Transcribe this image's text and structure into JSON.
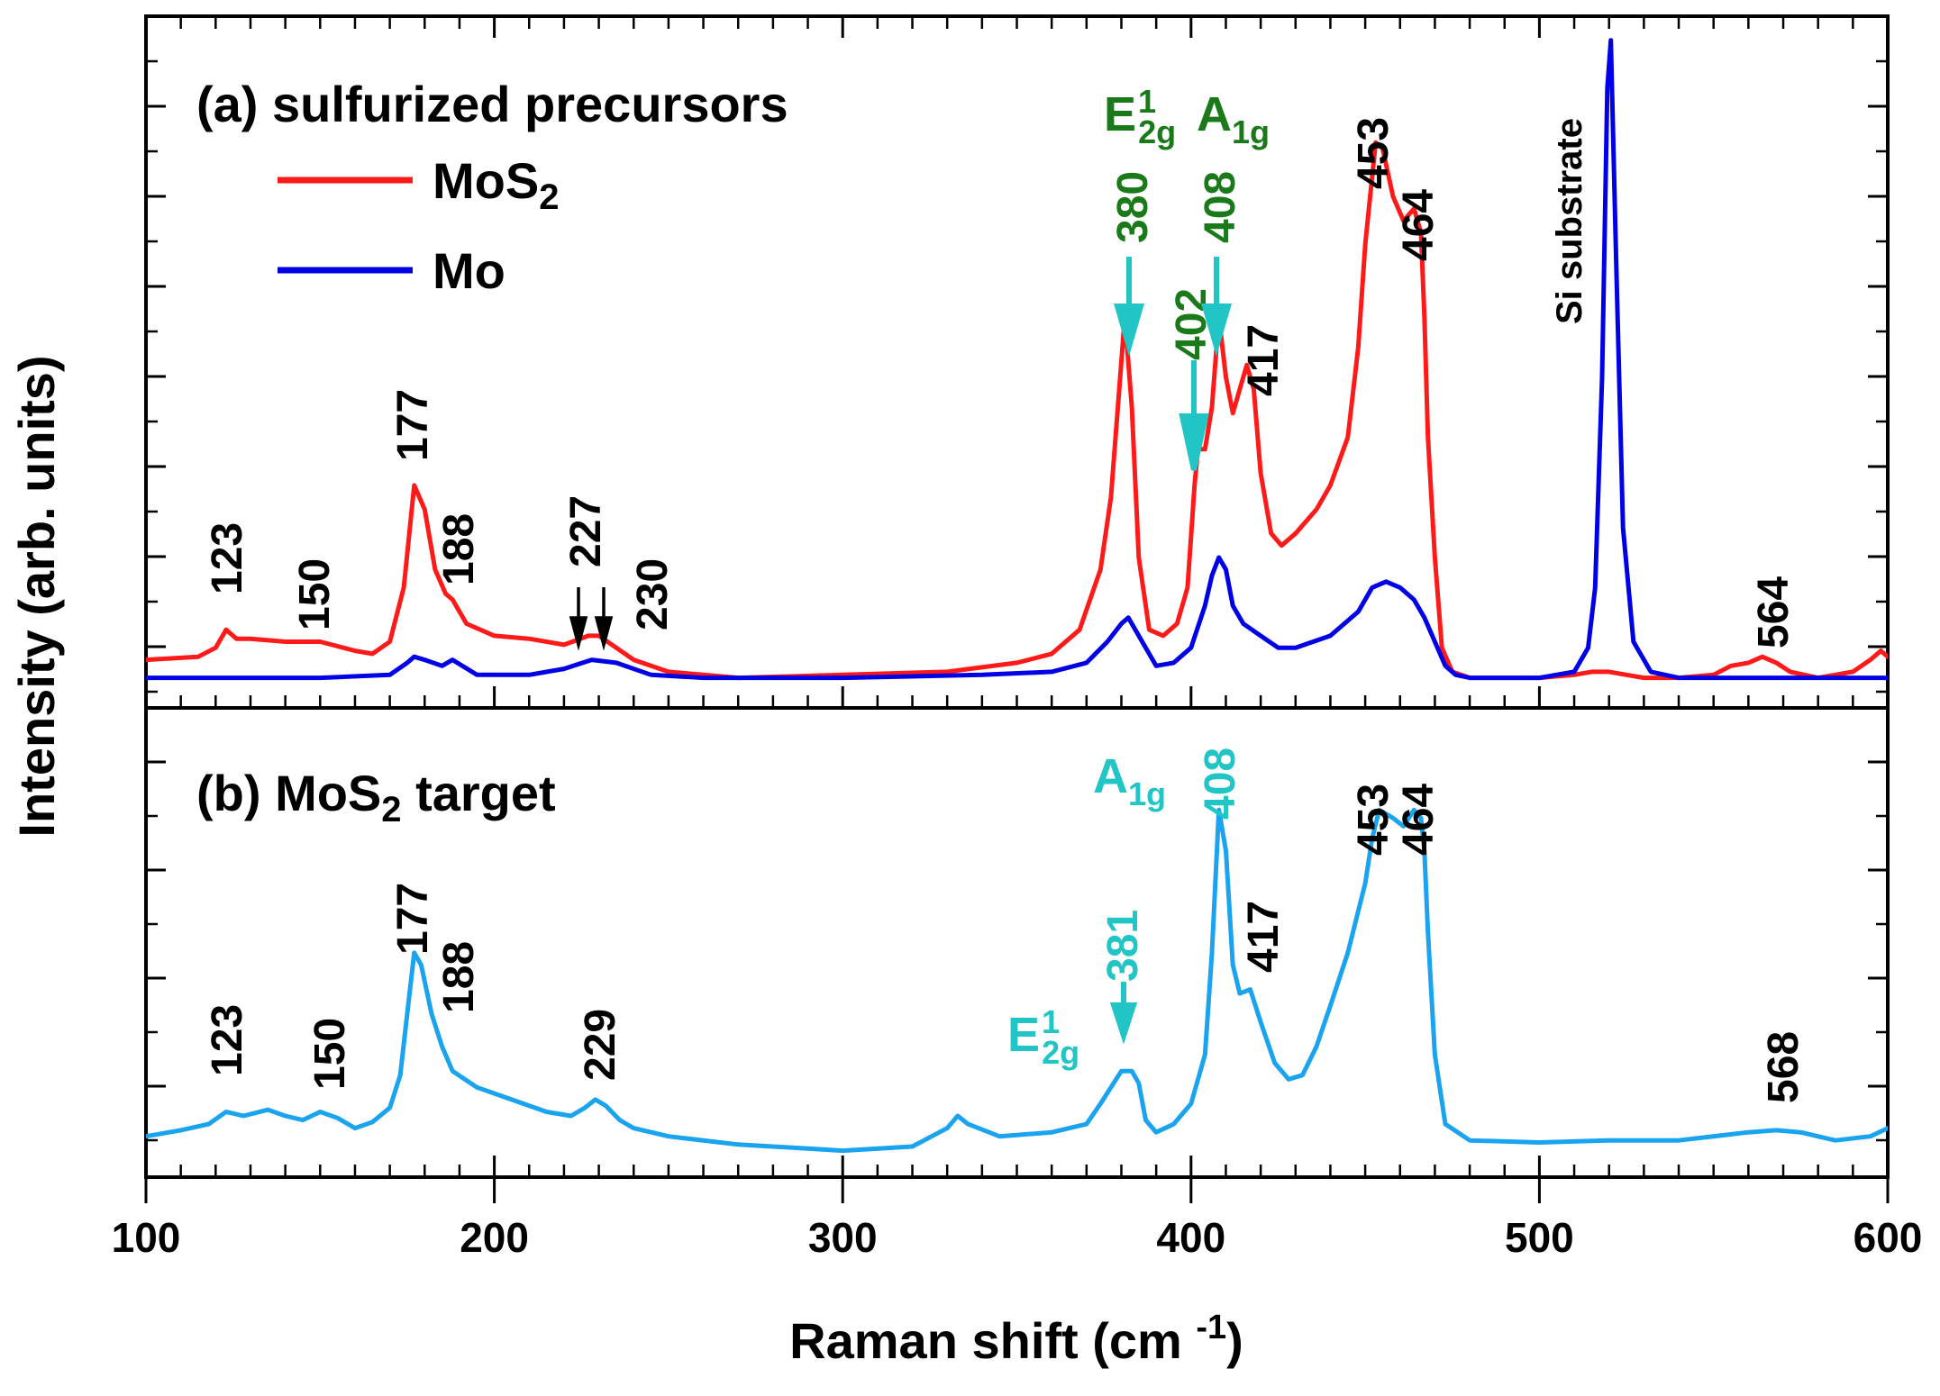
{
  "chart_data": [
    {
      "panel": "a",
      "type": "line",
      "title": "(a) sulfurized precursors",
      "xlabel": "Raman shift (cm ",
      "xlabel_sup": "-1",
      "xlabel_close": ")",
      "ylabel": "Intensity (arb. units)",
      "xlim": [
        100,
        600
      ],
      "ylim": [
        -0.05,
        1.1
      ],
      "legend_position": "top-left",
      "series": [
        {
          "name": "MoS",
          "name_sub": "2",
          "color": "#ff1a1a",
          "x": [
            100,
            115,
            120,
            123,
            126,
            130,
            140,
            150,
            160,
            165,
            170,
            174,
            177,
            180,
            183,
            186,
            188,
            192,
            200,
            210,
            220,
            227,
            230,
            235,
            240,
            250,
            270,
            300,
            330,
            350,
            360,
            368,
            374,
            377,
            379,
            381,
            383,
            385,
            388,
            392,
            396,
            399,
            401,
            402,
            404,
            406,
            408,
            410,
            412,
            414,
            416,
            418,
            420,
            423,
            426,
            430,
            436,
            440,
            445,
            448,
            450,
            453,
            455,
            458,
            461,
            464,
            466,
            467,
            468,
            470,
            472,
            475,
            480,
            490,
            500,
            510,
            515,
            520,
            525,
            530,
            540,
            550,
            555,
            560,
            564,
            568,
            572,
            580,
            590,
            595,
            598,
            600
          ],
          "y": [
            0.03,
            0.035,
            0.05,
            0.08,
            0.065,
            0.065,
            0.06,
            0.06,
            0.045,
            0.04,
            0.06,
            0.15,
            0.32,
            0.28,
            0.18,
            0.14,
            0.13,
            0.09,
            0.07,
            0.065,
            0.055,
            0.07,
            0.07,
            0.05,
            0.03,
            0.01,
            0.0,
            0.005,
            0.01,
            0.025,
            0.04,
            0.08,
            0.18,
            0.3,
            0.45,
            0.6,
            0.45,
            0.2,
            0.08,
            0.07,
            0.09,
            0.15,
            0.32,
            0.38,
            0.38,
            0.45,
            0.6,
            0.5,
            0.44,
            0.48,
            0.52,
            0.48,
            0.34,
            0.24,
            0.22,
            0.24,
            0.28,
            0.32,
            0.4,
            0.55,
            0.72,
            0.89,
            0.88,
            0.8,
            0.76,
            0.78,
            0.74,
            0.6,
            0.4,
            0.2,
            0.05,
            0.01,
            0.0,
            0.0,
            0.0,
            0.005,
            0.01,
            0.01,
            0.005,
            0.0,
            0.0,
            0.005,
            0.02,
            0.025,
            0.035,
            0.025,
            0.01,
            0.0,
            0.01,
            0.03,
            0.045,
            0.035
          ]
        },
        {
          "name": "Mo",
          "color": "#0000e6",
          "x": [
            100,
            150,
            170,
            175,
            177,
            180,
            185,
            188,
            195,
            210,
            220,
            228,
            235,
            245,
            260,
            300,
            340,
            360,
            370,
            376,
            380,
            382,
            385,
            390,
            395,
            400,
            404,
            406,
            408,
            410,
            412,
            415,
            420,
            425,
            430,
            440,
            448,
            452,
            456,
            460,
            464,
            467,
            470,
            473,
            476,
            480,
            500,
            510,
            514,
            516,
            518,
            519.5,
            520.5,
            522,
            524,
            527,
            532,
            540,
            600
          ],
          "y": [
            0.0,
            0.0,
            0.005,
            0.025,
            0.035,
            0.03,
            0.02,
            0.03,
            0.005,
            0.005,
            0.015,
            0.03,
            0.025,
            0.005,
            0.0,
            0.0,
            0.005,
            0.01,
            0.025,
            0.06,
            0.09,
            0.1,
            0.07,
            0.02,
            0.025,
            0.05,
            0.12,
            0.17,
            0.2,
            0.18,
            0.12,
            0.09,
            0.07,
            0.05,
            0.05,
            0.07,
            0.11,
            0.15,
            0.16,
            0.15,
            0.13,
            0.1,
            0.06,
            0.02,
            0.005,
            0.0,
            0.0,
            0.01,
            0.05,
            0.15,
            0.5,
            0.98,
            1.06,
            0.7,
            0.25,
            0.06,
            0.01,
            0.0,
            0.0
          ]
        }
      ],
      "annotations": [
        {
          "x": 123,
          "label": "123",
          "color": "#000000"
        },
        {
          "x": 150,
          "label": "150",
          "color": "#000000"
        },
        {
          "x": 177,
          "label": "177",
          "color": "#000000"
        },
        {
          "x": 188,
          "label": "188",
          "color": "#000000"
        },
        {
          "x": 227,
          "label": "227",
          "color": "#000000"
        },
        {
          "x": 230,
          "label": "230",
          "color": "#000000"
        },
        {
          "x": 380,
          "label": "380",
          "color": "#1a7a1a"
        },
        {
          "x": 402,
          "label": "402",
          "color": "#1a7a1a"
        },
        {
          "x": 408,
          "label": "408",
          "color": "#1a7a1a"
        },
        {
          "x": 417,
          "label": "417",
          "color": "#000000"
        },
        {
          "x": 453,
          "label": "453",
          "color": "#000000"
        },
        {
          "x": 464,
          "label": "464",
          "color": "#000000"
        },
        {
          "x": 520,
          "label": "Si substrate",
          "color": "#000000"
        },
        {
          "x": 564,
          "label": "564",
          "color": "#000000"
        }
      ],
      "mode_labels": [
        {
          "main": "E",
          "sub": "2g",
          "sup": "1",
          "color": "#1a7a1a"
        },
        {
          "main": "A",
          "sub": "1g",
          "sup": "",
          "color": "#1a7a1a"
        }
      ]
    },
    {
      "panel": "b",
      "type": "line",
      "title": "(b) MoS",
      "title_sub": "2",
      "title_rest": " target",
      "xlim": [
        100,
        600
      ],
      "ylim": [
        -0.1,
        1.05
      ],
      "series": [
        {
          "name": "MoS2 target",
          "color": "#1aa3ee",
          "x": [
            100,
            110,
            118,
            123,
            128,
            135,
            140,
            145,
            150,
            155,
            160,
            165,
            170,
            173,
            175,
            177,
            179,
            182,
            185,
            188,
            195,
            205,
            215,
            222,
            226,
            229,
            232,
            236,
            240,
            250,
            270,
            290,
            300,
            320,
            330,
            333,
            336,
            345,
            360,
            370,
            374,
            377,
            380,
            383,
            385,
            387,
            390,
            395,
            400,
            404,
            406,
            408,
            410,
            412,
            414,
            417,
            420,
            424,
            428,
            432,
            436,
            440,
            445,
            450,
            452,
            454,
            456,
            458,
            461,
            464,
            465,
            466,
            467,
            468,
            470,
            473,
            480,
            500,
            520,
            540,
            560,
            568,
            575,
            585,
            595,
            600
          ],
          "y": [
            0.0,
            0.015,
            0.03,
            0.06,
            0.05,
            0.065,
            0.05,
            0.04,
            0.06,
            0.045,
            0.02,
            0.035,
            0.07,
            0.15,
            0.3,
            0.45,
            0.42,
            0.3,
            0.22,
            0.16,
            0.12,
            0.09,
            0.06,
            0.05,
            0.07,
            0.09,
            0.075,
            0.04,
            0.02,
            0.0,
            -0.02,
            -0.03,
            -0.035,
            -0.025,
            0.02,
            0.05,
            0.03,
            0.0,
            0.01,
            0.03,
            0.08,
            0.12,
            0.16,
            0.16,
            0.13,
            0.04,
            0.01,
            0.03,
            0.08,
            0.2,
            0.45,
            0.8,
            0.7,
            0.42,
            0.35,
            0.36,
            0.28,
            0.18,
            0.14,
            0.15,
            0.22,
            0.32,
            0.45,
            0.62,
            0.73,
            0.8,
            0.79,
            0.78,
            0.76,
            0.8,
            0.79,
            0.78,
            0.7,
            0.5,
            0.2,
            0.03,
            -0.01,
            -0.015,
            -0.01,
            -0.01,
            0.01,
            0.015,
            0.01,
            -0.01,
            0.0,
            0.02
          ]
        }
      ],
      "annotations": [
        {
          "x": 123,
          "label": "123",
          "color": "#000000"
        },
        {
          "x": 150,
          "label": "150",
          "color": "#000000"
        },
        {
          "x": 177,
          "label": "177",
          "color": "#000000"
        },
        {
          "x": 188,
          "label": "188",
          "color": "#000000"
        },
        {
          "x": 229,
          "label": "229",
          "color": "#000000"
        },
        {
          "x": 381,
          "label": "381",
          "color": "#22c5c5"
        },
        {
          "x": 408,
          "label": "408",
          "color": "#22c5c5"
        },
        {
          "x": 417,
          "label": "417",
          "color": "#000000"
        },
        {
          "x": 453,
          "label": "453",
          "color": "#000000"
        },
        {
          "x": 464,
          "label": "464",
          "color": "#000000"
        },
        {
          "x": 568,
          "label": "568",
          "color": "#000000"
        }
      ],
      "mode_labels": [
        {
          "main": "A",
          "sub": "1g",
          "sup": "",
          "color": "#22c5c5"
        },
        {
          "main": "E",
          "sub": "2g",
          "sup": "1",
          "color": "#22c5c5"
        }
      ]
    }
  ],
  "x_ticks": [
    "100",
    "200",
    "300",
    "400",
    "500",
    "600"
  ],
  "arrow_color_cyan": "#22c5c5",
  "arrow_color_black": "#000000"
}
